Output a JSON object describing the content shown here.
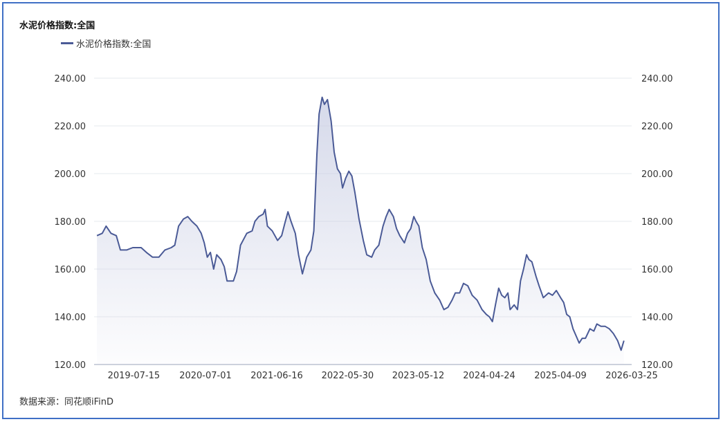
{
  "source": "数据来源：同花顺iFinD",
  "chart_data": {
    "type": "area",
    "title": "水泥价格指数:全国",
    "series": [
      {
        "name": "水泥价格指数:全国",
        "color": "#4a5a96",
        "points": [
          [
            "2019-01-15",
            174
          ],
          [
            "2019-02-10",
            175
          ],
          [
            "2019-03-01",
            178
          ],
          [
            "2019-03-25",
            175
          ],
          [
            "2019-04-20",
            174
          ],
          [
            "2019-05-10",
            168
          ],
          [
            "2019-06-10",
            168
          ],
          [
            "2019-07-10",
            169
          ],
          [
            "2019-08-20",
            169
          ],
          [
            "2019-09-15",
            167
          ],
          [
            "2019-10-15",
            165
          ],
          [
            "2019-11-15",
            165
          ],
          [
            "2019-12-15",
            168
          ],
          [
            "2020-01-15",
            169
          ],
          [
            "2020-02-01",
            170
          ],
          [
            "2020-02-20",
            178
          ],
          [
            "2020-03-15",
            181
          ],
          [
            "2020-04-05",
            182
          ],
          [
            "2020-04-25",
            180
          ],
          [
            "2020-05-20",
            178
          ],
          [
            "2020-06-10",
            175
          ],
          [
            "2020-06-25",
            171
          ],
          [
            "2020-07-10",
            165
          ],
          [
            "2020-07-25",
            167
          ],
          [
            "2020-08-10",
            160
          ],
          [
            "2020-08-25",
            166
          ],
          [
            "2020-09-15",
            164
          ],
          [
            "2020-10-01",
            161
          ],
          [
            "2020-10-15",
            155
          ],
          [
            "2020-11-15",
            155
          ],
          [
            "2020-12-01",
            159
          ],
          [
            "2020-12-20",
            170
          ],
          [
            "2021-01-20",
            175
          ],
          [
            "2021-02-15",
            176
          ],
          [
            "2021-03-01",
            180
          ],
          [
            "2021-03-20",
            182
          ],
          [
            "2021-04-10",
            183
          ],
          [
            "2021-04-20",
            185
          ],
          [
            "2021-05-01",
            178
          ],
          [
            "2021-05-25",
            176
          ],
          [
            "2021-06-20",
            172
          ],
          [
            "2021-07-10",
            174
          ],
          [
            "2021-07-25",
            179
          ],
          [
            "2021-08-10",
            184
          ],
          [
            "2021-08-25",
            180
          ],
          [
            "2021-09-15",
            175
          ],
          [
            "2021-10-01",
            166
          ],
          [
            "2021-10-20",
            158
          ],
          [
            "2021-11-10",
            165
          ],
          [
            "2021-12-01",
            168
          ],
          [
            "2021-12-15",
            176
          ],
          [
            "2021-12-30",
            208
          ],
          [
            "2022-01-10",
            225
          ],
          [
            "2022-01-25",
            232
          ],
          [
            "2022-02-05",
            229
          ],
          [
            "2022-02-20",
            231
          ],
          [
            "2022-03-10",
            222
          ],
          [
            "2022-03-25",
            209
          ],
          [
            "2022-04-10",
            202
          ],
          [
            "2022-04-25",
            200
          ],
          [
            "2022-05-05",
            194
          ],
          [
            "2022-05-20",
            198
          ],
          [
            "2022-06-05",
            201
          ],
          [
            "2022-06-20",
            199
          ],
          [
            "2022-07-05",
            192
          ],
          [
            "2022-07-25",
            181
          ],
          [
            "2022-08-15",
            172
          ],
          [
            "2022-09-01",
            166
          ],
          [
            "2022-09-25",
            165
          ],
          [
            "2022-10-10",
            168
          ],
          [
            "2022-10-30",
            170
          ],
          [
            "2022-11-20",
            178
          ],
          [
            "2022-12-05",
            182
          ],
          [
            "2022-12-20",
            185
          ],
          [
            "2023-01-10",
            182
          ],
          [
            "2023-01-25",
            177
          ],
          [
            "2023-02-10",
            174
          ],
          [
            "2023-03-05",
            171
          ],
          [
            "2023-03-20",
            175
          ],
          [
            "2023-04-05",
            177
          ],
          [
            "2023-04-20",
            182
          ],
          [
            "2023-05-01",
            180
          ],
          [
            "2023-05-15",
            178
          ],
          [
            "2023-06-01",
            169
          ],
          [
            "2023-06-20",
            164
          ],
          [
            "2023-07-10",
            155
          ],
          [
            "2023-08-01",
            150
          ],
          [
            "2023-08-25",
            147
          ],
          [
            "2023-09-15",
            143
          ],
          [
            "2023-10-05",
            144
          ],
          [
            "2023-10-25",
            147
          ],
          [
            "2023-11-10",
            150
          ],
          [
            "2023-12-01",
            150
          ],
          [
            "2023-12-20",
            154
          ],
          [
            "2024-01-10",
            153
          ],
          [
            "2024-02-01",
            149
          ],
          [
            "2024-02-25",
            147
          ],
          [
            "2024-03-20",
            143
          ],
          [
            "2024-04-10",
            141
          ],
          [
            "2024-04-25",
            140
          ],
          [
            "2024-05-10",
            138
          ],
          [
            "2024-05-25",
            145
          ],
          [
            "2024-06-10",
            152
          ],
          [
            "2024-06-25",
            149
          ],
          [
            "2024-07-10",
            148
          ],
          [
            "2024-07-25",
            150
          ],
          [
            "2024-08-05",
            143
          ],
          [
            "2024-08-25",
            145
          ],
          [
            "2024-09-10",
            143
          ],
          [
            "2024-09-25",
            155
          ],
          [
            "2024-10-10",
            160
          ],
          [
            "2024-10-25",
            166
          ],
          [
            "2024-11-05",
            164
          ],
          [
            "2024-11-20",
            163
          ],
          [
            "2024-12-10",
            157
          ],
          [
            "2024-12-25",
            153
          ],
          [
            "2025-01-15",
            148
          ],
          [
            "2025-02-10",
            150
          ],
          [
            "2025-03-01",
            149
          ],
          [
            "2025-03-20",
            151
          ],
          [
            "2025-04-10",
            148
          ],
          [
            "2025-04-25",
            146
          ],
          [
            "2025-05-10",
            141
          ],
          [
            "2025-05-25",
            140
          ],
          [
            "2025-06-10",
            135
          ],
          [
            "2025-06-25",
            132
          ],
          [
            "2025-07-10",
            129
          ],
          [
            "2025-07-25",
            131
          ],
          [
            "2025-08-10",
            131
          ],
          [
            "2025-09-01",
            135
          ],
          [
            "2025-09-20",
            134
          ],
          [
            "2025-10-05",
            137
          ],
          [
            "2025-10-25",
            136
          ],
          [
            "2025-11-15",
            136
          ],
          [
            "2025-12-05",
            135
          ],
          [
            "2025-12-25",
            133
          ],
          [
            "2026-01-15",
            130
          ],
          [
            "2026-02-01",
            126
          ],
          [
            "2026-02-15",
            130
          ]
        ]
      }
    ],
    "x_ticks": [
      "2019-07-15",
      "2020-07-01",
      "2021-06-16",
      "2022-05-30",
      "2023-05-12",
      "2024-04-24",
      "2025-04-09",
      "2026-03-25"
    ],
    "y_ticks": [
      "120.00",
      "140.00",
      "160.00",
      "180.00",
      "200.00",
      "220.00",
      "240.00"
    ],
    "ylim": [
      120,
      240
    ],
    "xlim": [
      "2019-01-01",
      "2026-03-25"
    ],
    "grid": true,
    "legend": "top-left",
    "dual_axis": true
  }
}
